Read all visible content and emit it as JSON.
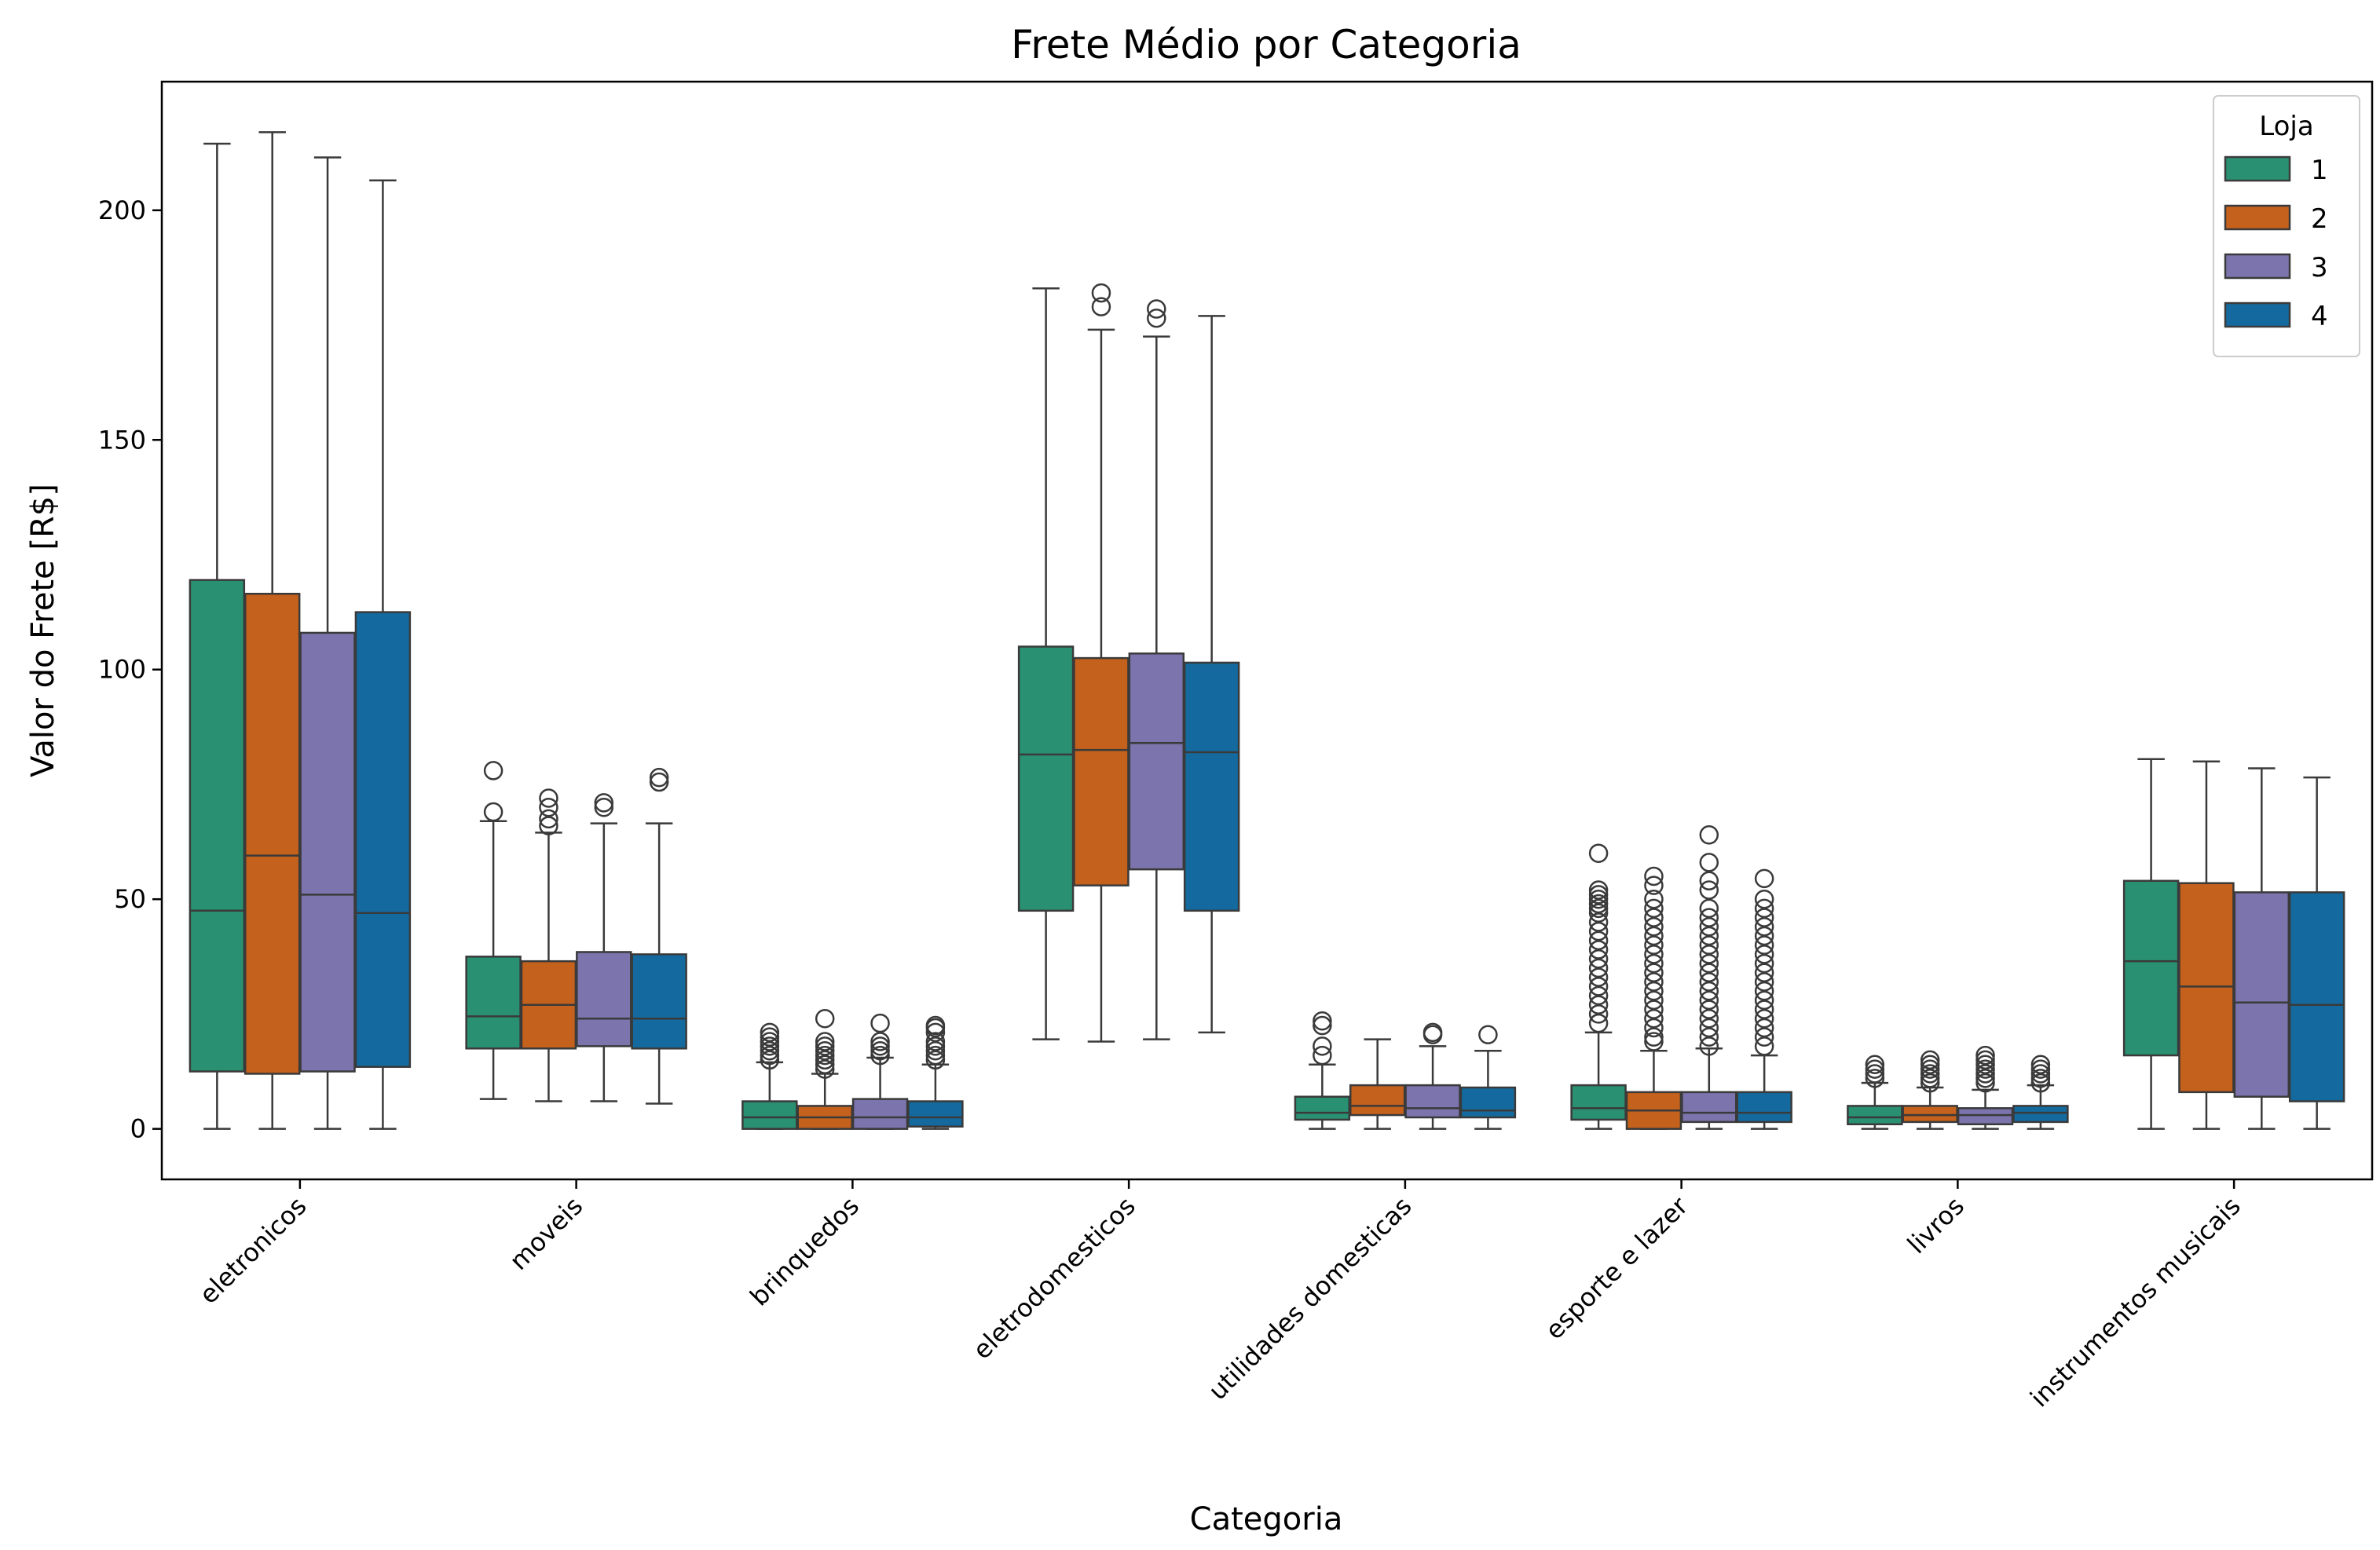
{
  "chart_data": {
    "type": "box",
    "title": "Frete Médio por Categoria",
    "xlabel": "Categoria",
    "ylabel": "Valor do Frete [R$]",
    "ylim": [
      -11,
      228
    ],
    "yticks": [
      0,
      50,
      100,
      150,
      200
    ],
    "categories": [
      "eletronicos",
      "moveis",
      "brinquedos",
      "eletrodomesticos",
      "utilidades domesticas",
      "esporte e lazer",
      "livros",
      "instrumentos musicais"
    ],
    "legend": {
      "title": "Loja",
      "position": "top-right"
    },
    "series": [
      {
        "name": "1",
        "color": "#2a9072",
        "boxes": [
          {
            "whisker_low": 0,
            "q1": 12.5,
            "median": 47.5,
            "q3": 119.5,
            "whisker_high": 214.5,
            "outliers": []
          },
          {
            "whisker_low": 6.5,
            "q1": 17.5,
            "median": 24.5,
            "q3": 37.5,
            "whisker_high": 67,
            "outliers": [
              69,
              78
            ]
          },
          {
            "whisker_low": 0,
            "q1": 0,
            "median": 2.5,
            "q3": 6,
            "whisker_high": 14.5,
            "outliers": [
              15,
              16,
              17,
              18,
              19,
              20,
              21
            ]
          },
          {
            "whisker_low": 19.5,
            "q1": 47.5,
            "median": 81.5,
            "q3": 105,
            "whisker_high": 183,
            "outliers": []
          },
          {
            "whisker_low": 0,
            "q1": 2,
            "median": 3.5,
            "q3": 7,
            "whisker_high": 14,
            "outliers": [
              16,
              18,
              22.5,
              23.5
            ]
          },
          {
            "whisker_low": 0,
            "q1": 2,
            "median": 4.5,
            "q3": 9.5,
            "whisker_high": 21,
            "outliers": [
              23,
              25,
              27,
              29,
              31,
              33,
              35,
              37,
              39,
              41,
              43,
              45,
              47,
              48,
              49,
              50,
              51,
              52,
              60
            ]
          },
          {
            "whisker_low": 0,
            "q1": 1,
            "median": 2.5,
            "q3": 5,
            "whisker_high": 10,
            "outliers": [
              11,
              12,
              13,
              14
            ]
          },
          {
            "whisker_low": 0,
            "q1": 16,
            "median": 36.5,
            "q3": 54,
            "whisker_high": 80.5,
            "outliers": []
          }
        ]
      },
      {
        "name": "2",
        "color": "#c4611c",
        "boxes": [
          {
            "whisker_low": 0,
            "q1": 12,
            "median": 59.5,
            "q3": 116.5,
            "whisker_high": 217,
            "outliers": []
          },
          {
            "whisker_low": 6,
            "q1": 17.5,
            "median": 27,
            "q3": 36.5,
            "whisker_high": 64.5,
            "outliers": [
              66,
              67.5,
              70,
              72
            ]
          },
          {
            "whisker_low": 0,
            "q1": 0,
            "median": 2.5,
            "q3": 5,
            "whisker_high": 12,
            "outliers": [
              13,
              14,
              15,
              16,
              17,
              18,
              19,
              24
            ]
          },
          {
            "whisker_low": 19,
            "q1": 53,
            "median": 82.5,
            "q3": 102.5,
            "whisker_high": 174,
            "outliers": [
              179,
              182
            ]
          },
          {
            "whisker_low": 0,
            "q1": 3,
            "median": 5,
            "q3": 9.5,
            "whisker_high": 19.5,
            "outliers": []
          },
          {
            "whisker_low": 0,
            "q1": 0,
            "median": 4,
            "q3": 8,
            "whisker_high": 17,
            "outliers": [
              19,
              20,
              22,
              24,
              26,
              28,
              30,
              32,
              34,
              36,
              38,
              40,
              42,
              44,
              46,
              48,
              50,
              53,
              55
            ]
          },
          {
            "whisker_low": 0,
            "q1": 1.5,
            "median": 3,
            "q3": 5,
            "whisker_high": 9,
            "outliers": [
              10,
              11,
              12,
              13,
              14,
              15
            ]
          },
          {
            "whisker_low": 0,
            "q1": 8,
            "median": 31,
            "q3": 53.5,
            "whisker_high": 80,
            "outliers": []
          }
        ]
      },
      {
        "name": "3",
        "color": "#7b74ad",
        "boxes": [
          {
            "whisker_low": 0,
            "q1": 12.5,
            "median": 51,
            "q3": 108,
            "whisker_high": 211.5,
            "outliers": []
          },
          {
            "whisker_low": 6,
            "q1": 18,
            "median": 24,
            "q3": 38.5,
            "whisker_high": 66.5,
            "outliers": [
              70,
              71
            ]
          },
          {
            "whisker_low": 0,
            "q1": 0,
            "median": 2.5,
            "q3": 6.5,
            "whisker_high": 15.5,
            "outliers": [
              16,
              17,
              18,
              19,
              23
            ]
          },
          {
            "whisker_low": 19.5,
            "q1": 56.5,
            "median": 84,
            "q3": 103.5,
            "whisker_high": 172.5,
            "outliers": [
              176.5,
              178.5
            ]
          },
          {
            "whisker_low": 0,
            "q1": 2.5,
            "median": 4.5,
            "q3": 9.5,
            "whisker_high": 18,
            "outliers": [
              20.5,
              21
            ]
          },
          {
            "whisker_low": 0,
            "q1": 1.5,
            "median": 3.5,
            "q3": 8,
            "whisker_high": 17.5,
            "outliers": [
              18,
              20,
              22,
              24,
              26,
              28,
              30,
              32,
              34,
              36,
              38,
              40,
              42,
              44,
              46,
              48,
              52,
              54,
              58,
              64
            ]
          },
          {
            "whisker_low": 0,
            "q1": 1,
            "median": 3,
            "q3": 4.5,
            "whisker_high": 8.5,
            "outliers": [
              10,
              11,
              12,
              13,
              14,
              15,
              16
            ]
          },
          {
            "whisker_low": 0,
            "q1": 7,
            "median": 27.5,
            "q3": 51.5,
            "whisker_high": 78.5,
            "outliers": []
          }
        ]
      },
      {
        "name": "4",
        "color": "#146a9e",
        "boxes": [
          {
            "whisker_low": 0,
            "q1": 13.5,
            "median": 47,
            "q3": 112.5,
            "whisker_high": 206.5,
            "outliers": []
          },
          {
            "whisker_low": 5.5,
            "q1": 17.5,
            "median": 24,
            "q3": 38,
            "whisker_high": 66.5,
            "outliers": [
              75.5,
              76.5
            ]
          },
          {
            "whisker_low": 0,
            "q1": 0.5,
            "median": 2.5,
            "q3": 6,
            "whisker_high": 14,
            "outliers": [
              15,
              16,
              17,
              18,
              19,
              21,
              22,
              22.5
            ]
          },
          {
            "whisker_low": 21,
            "q1": 47.5,
            "median": 82,
            "q3": 101.5,
            "whisker_high": 177,
            "outliers": []
          },
          {
            "whisker_low": 0,
            "q1": 2.5,
            "median": 4,
            "q3": 9,
            "whisker_high": 17,
            "outliers": [
              20.5
            ]
          },
          {
            "whisker_low": 0,
            "q1": 1.5,
            "median": 3.5,
            "q3": 8,
            "whisker_high": 16,
            "outliers": [
              18,
              20,
              22,
              24,
              26,
              28,
              30,
              32,
              34,
              36,
              38,
              40,
              42,
              44,
              46,
              48,
              50,
              54.5
            ]
          },
          {
            "whisker_low": 0,
            "q1": 1.5,
            "median": 3.5,
            "q3": 5,
            "whisker_high": 9.5,
            "outliers": [
              10,
              11,
              12,
              13,
              14
            ]
          },
          {
            "whisker_low": 0,
            "q1": 6,
            "median": 27,
            "q3": 51.5,
            "whisker_high": 76.5,
            "outliers": []
          }
        ]
      }
    ]
  }
}
